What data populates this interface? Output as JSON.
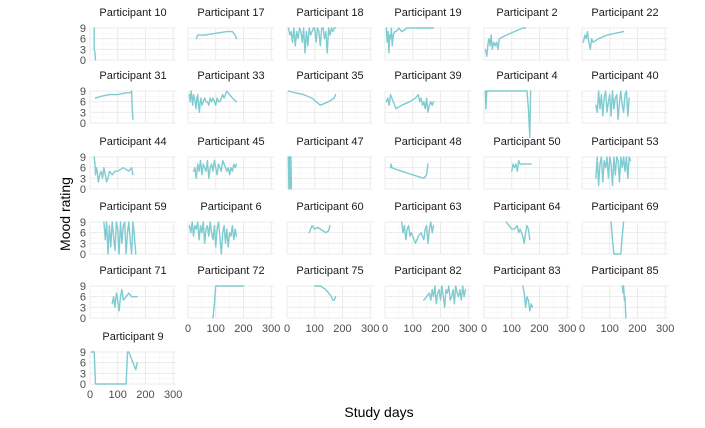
{
  "chart_data": {
    "type": "line",
    "layout": "faceted small multiples",
    "xlabel": "Study days",
    "ylabel": "Mood rating",
    "xlim": [
      0,
      310
    ],
    "ylim": [
      0,
      9
    ],
    "x_ticks": [
      0,
      100,
      200,
      300
    ],
    "y_ticks": [
      0,
      3,
      6,
      9
    ],
    "grid": true,
    "line_color": "#7ecbd0",
    "grid_color": "#ebebeb",
    "series": [
      {
        "name": "Participant 10",
        "x": [
          15,
          15,
          18,
          20
        ],
        "y": [
          9,
          3,
          2,
          0
        ]
      },
      {
        "name": "Participant 17",
        "x": [
          30,
          35,
          60,
          100,
          140,
          150,
          160,
          170,
          175
        ],
        "y": [
          6,
          7,
          7,
          7.5,
          8,
          8,
          8,
          7,
          6
        ]
      },
      {
        "name": "Participant 18",
        "x": [
          5,
          10,
          15,
          20,
          25,
          30,
          35,
          40,
          45,
          50,
          55,
          60,
          65,
          70,
          75,
          80,
          85,
          90,
          95,
          100,
          105,
          110,
          115,
          120,
          125,
          130,
          135,
          140,
          145,
          150,
          155,
          160,
          165,
          170,
          175
        ],
        "y": [
          9,
          7,
          8,
          5,
          9,
          4,
          8,
          6,
          9,
          8,
          5,
          9,
          2,
          8,
          4,
          9,
          7,
          8,
          9,
          9,
          5,
          9,
          8,
          4,
          9,
          9,
          6,
          8,
          2,
          9,
          7,
          9,
          8,
          9,
          9
        ]
      },
      {
        "name": "Participant 19",
        "x": [
          5,
          8,
          11,
          14,
          17,
          20,
          23,
          26,
          30,
          35,
          40,
          50,
          60,
          80,
          100,
          130,
          160,
          175
        ],
        "y": [
          9,
          5,
          8,
          2,
          7,
          6,
          9,
          4,
          7,
          8,
          8,
          9,
          8,
          9,
          9,
          9,
          9,
          9
        ]
      },
      {
        "name": "Participant 2",
        "x": [
          5,
          10,
          15,
          18,
          22,
          26,
          30,
          35,
          40,
          45,
          50,
          55,
          80,
          110,
          140,
          150
        ],
        "y": [
          3,
          1,
          5,
          6,
          4,
          7,
          3,
          5,
          4,
          5,
          3,
          6,
          7,
          8,
          9,
          9
        ]
      },
      {
        "name": "Participant 22",
        "x": [
          5,
          10,
          15,
          20,
          25,
          30,
          35,
          40,
          60,
          90,
          120,
          150
        ],
        "y": [
          5,
          7,
          6,
          8,
          5,
          3,
          6,
          5,
          6,
          7,
          7.5,
          8
        ]
      },
      {
        "name": "Participant 31",
        "x": [
          20,
          40,
          70,
          100,
          130,
          145,
          150,
          152,
          155
        ],
        "y": [
          7,
          7.5,
          8,
          8,
          8.5,
          8.5,
          9,
          4,
          1
        ]
      },
      {
        "name": "Participant 33",
        "x": [
          5,
          8,
          11,
          14,
          17,
          20,
          23,
          26,
          29,
          32,
          35,
          38,
          41,
          44,
          47,
          50,
          55,
          60,
          65,
          70,
          75,
          80,
          85,
          90,
          95,
          100,
          105,
          110,
          115,
          120,
          125,
          130,
          140,
          150,
          160,
          175
        ],
        "y": [
          8,
          6,
          9,
          7,
          5,
          8,
          7,
          6,
          4,
          7,
          8,
          5,
          3,
          6,
          7,
          5,
          6,
          7,
          6,
          6,
          5,
          7,
          6,
          7,
          6,
          5,
          7,
          6,
          6,
          7,
          8,
          7,
          9,
          8,
          7,
          6
        ]
      },
      {
        "name": "Participant 35",
        "x": [
          5,
          30,
          60,
          90,
          120,
          150,
          170,
          175
        ],
        "y": [
          9,
          8.5,
          8,
          7,
          5,
          6,
          7,
          8
        ]
      },
      {
        "name": "Participant 39",
        "x": [
          5,
          10,
          15,
          20,
          25,
          30,
          40,
          60,
          90,
          110,
          120,
          125,
          130,
          135,
          140,
          145,
          150,
          155,
          160,
          165,
          170,
          175
        ],
        "y": [
          6,
          7,
          5,
          8,
          7,
          6,
          4,
          5,
          6,
          7,
          8,
          6,
          7,
          5,
          6,
          4,
          7,
          3,
          5,
          6,
          5,
          6
        ]
      },
      {
        "name": "Participant 4",
        "x": [
          5,
          7,
          10,
          12,
          15,
          20,
          30,
          60,
          100,
          130,
          150,
          155,
          160,
          165,
          168
        ],
        "y": [
          9,
          4,
          9,
          9,
          9,
          9,
          9,
          9,
          9,
          9,
          9,
          9,
          4,
          -4,
          9
        ]
      },
      {
        "name": "Participant 40",
        "x": [
          50,
          55,
          60,
          65,
          70,
          75,
          80,
          85,
          90,
          95,
          100,
          105,
          110,
          115,
          120,
          125,
          130,
          135,
          140,
          145,
          150,
          155,
          160,
          165,
          170
        ],
        "y": [
          5,
          3,
          9,
          4,
          8,
          2,
          7,
          9,
          3,
          6,
          8,
          2,
          9,
          4,
          7,
          8,
          1,
          6,
          9,
          5,
          3,
          8,
          9,
          2,
          7
        ]
      },
      {
        "name": "Participant 44",
        "x": [
          15,
          18,
          20,
          23,
          26,
          30,
          35,
          40,
          45,
          50,
          55,
          60,
          65,
          70,
          80,
          90,
          100,
          120,
          140,
          150,
          155
        ],
        "y": [
          9,
          7,
          4,
          6,
          5,
          2,
          4,
          5,
          3,
          6,
          4,
          2,
          3,
          5,
          4,
          5,
          5,
          6,
          5,
          6,
          4
        ]
      },
      {
        "name": "Participant 45",
        "x": [
          20,
          25,
          30,
          35,
          40,
          45,
          50,
          55,
          60,
          65,
          70,
          75,
          80,
          85,
          90,
          95,
          100,
          105,
          110,
          115,
          120,
          125,
          130,
          135,
          140,
          145,
          150,
          155,
          160,
          165,
          170,
          175
        ],
        "y": [
          5,
          6,
          3,
          7,
          5,
          8,
          4,
          7,
          6,
          5,
          8,
          3,
          6,
          7,
          5,
          8,
          6,
          4,
          7,
          6,
          5,
          8,
          7,
          6,
          5,
          6,
          4,
          6,
          5,
          7,
          6,
          7
        ]
      },
      {
        "name": "Participant 47",
        "x": [
          5,
          7,
          9,
          10,
          12,
          14,
          16
        ],
        "y": [
          9,
          0,
          9,
          0,
          9,
          9,
          0
        ]
      },
      {
        "name": "Participant 48",
        "x": [
          20,
          22,
          25,
          40,
          60,
          80,
          100,
          120,
          140,
          150,
          155
        ],
        "y": [
          6,
          7,
          6,
          5.5,
          5,
          4.5,
          4,
          3.5,
          3,
          4,
          7
        ]
      },
      {
        "name": "Participant 50",
        "x": [
          100,
          105,
          110,
          115,
          120,
          125,
          130,
          140,
          150,
          160,
          170
        ],
        "y": [
          5,
          7,
          6,
          7,
          5,
          8,
          7,
          7,
          7,
          7,
          7
        ]
      },
      {
        "name": "Participant 53",
        "x": [
          50,
          55,
          60,
          65,
          70,
          75,
          80,
          85,
          90,
          95,
          100,
          105,
          110,
          115,
          120,
          125,
          130,
          135,
          140,
          145,
          150,
          155,
          160,
          165,
          170,
          175
        ],
        "y": [
          3,
          9,
          1,
          7,
          9,
          2,
          8,
          6,
          9,
          3,
          9,
          7,
          1,
          9,
          4,
          9,
          8,
          2,
          9,
          6,
          9,
          5,
          9,
          3,
          9,
          8
        ]
      },
      {
        "name": "Participant 59",
        "x": [
          50,
          55,
          60,
          65,
          70,
          75,
          80,
          85,
          90,
          95,
          100,
          105,
          110,
          115,
          120,
          125,
          130,
          135,
          140,
          145,
          150,
          155,
          160,
          165
        ],
        "y": [
          9,
          4,
          9,
          0,
          8,
          2,
          9,
          5,
          1,
          9,
          7,
          0,
          9,
          3,
          8,
          9,
          0,
          6,
          9,
          4,
          0,
          9,
          5,
          0
        ]
      },
      {
        "name": "Participant 6",
        "x": [
          5,
          10,
          15,
          20,
          25,
          30,
          35,
          40,
          45,
          50,
          55,
          60,
          65,
          70,
          75,
          80,
          85,
          90,
          95,
          100,
          105,
          110,
          115,
          120,
          125,
          130,
          135,
          140,
          145,
          150,
          155,
          160,
          165,
          170,
          175
        ],
        "y": [
          8,
          6,
          9,
          5,
          8,
          7,
          9,
          4,
          8,
          6,
          9,
          3,
          7,
          8,
          5,
          9,
          6,
          4,
          8,
          2,
          7,
          9,
          5,
          0,
          6,
          8,
          3,
          7,
          2,
          6,
          5,
          8,
          4,
          7,
          5
        ]
      },
      {
        "name": "Participant 60",
        "x": [
          80,
          90,
          100,
          110,
          120,
          130,
          140,
          150,
          155
        ],
        "y": [
          6,
          8,
          7,
          7.5,
          7,
          6.5,
          6,
          6.5,
          8
        ]
      },
      {
        "name": "Participant 63",
        "x": [
          60,
          65,
          70,
          75,
          80,
          85,
          90,
          95,
          100,
          105,
          110,
          120,
          130,
          140,
          145,
          150,
          155,
          160,
          165,
          170,
          175
        ],
        "y": [
          9,
          6,
          8,
          4,
          7,
          8,
          5,
          6,
          5,
          4,
          3,
          5,
          6,
          4,
          7,
          8,
          3,
          7,
          9,
          6,
          8
        ]
      },
      {
        "name": "Participant 64",
        "x": [
          80,
          90,
          100,
          110,
          120,
          125,
          130,
          140,
          145,
          150,
          155,
          160,
          165
        ],
        "y": [
          9,
          8,
          7,
          7,
          8,
          6,
          7,
          5,
          3,
          6,
          8,
          7,
          4
        ]
      },
      {
        "name": "Participant 69",
        "x": [
          105,
          110,
          115,
          120,
          135,
          140,
          145,
          150
        ],
        "y": [
          9,
          4,
          0,
          0,
          0,
          0,
          5,
          9
        ]
      },
      {
        "name": "Participant 71",
        "x": [
          80,
          85,
          90,
          95,
          100,
          105,
          110,
          115,
          120,
          130,
          140,
          150,
          160,
          170
        ],
        "y": [
          4,
          6,
          3,
          7,
          5,
          2,
          6,
          8,
          5,
          6,
          7,
          6,
          6,
          6
        ]
      },
      {
        "name": "Participant 72",
        "x": [
          90,
          95,
          100,
          120,
          150,
          180,
          200
        ],
        "y": [
          0,
          4,
          9,
          9,
          9,
          9,
          9
        ]
      },
      {
        "name": "Participant 75",
        "x": [
          100,
          110,
          120,
          130,
          140,
          150,
          160,
          165,
          170,
          175
        ],
        "y": [
          9,
          9,
          9,
          8.5,
          8,
          7,
          6,
          5,
          5,
          6
        ]
      },
      {
        "name": "Participant 82",
        "x": [
          140,
          150,
          160,
          165,
          170,
          175,
          180,
          185,
          190,
          195,
          200,
          205,
          210,
          215,
          220,
          225,
          230,
          235,
          240,
          245,
          250,
          255,
          260,
          265,
          270,
          275,
          280,
          285,
          290
        ],
        "y": [
          5,
          6,
          7,
          5,
          8,
          6,
          9,
          4,
          7,
          8,
          5,
          9,
          6,
          3,
          8,
          7,
          9,
          5,
          6,
          8,
          4,
          9,
          7,
          6,
          8,
          5,
          9,
          6,
          8
        ]
      },
      {
        "name": "Participant 83",
        "x": [
          140,
          145,
          150,
          155,
          160,
          165,
          170,
          175
        ],
        "y": [
          9,
          7,
          3,
          6,
          5,
          2,
          4,
          3
        ]
      },
      {
        "name": "Participant 85",
        "x": [
          145,
          148,
          150,
          153,
          155,
          158
        ],
        "y": [
          9,
          7,
          9,
          5,
          6,
          0
        ]
      },
      {
        "name": "Participant 9",
        "x": [
          5,
          10,
          15,
          20,
          40,
          80,
          120,
          125,
          130,
          135,
          140,
          145,
          150,
          155,
          160,
          165,
          170
        ],
        "y": [
          9,
          9,
          9,
          0,
          0,
          0,
          0,
          0,
          0,
          9,
          9,
          8,
          7,
          6,
          5,
          4,
          6
        ]
      }
    ]
  }
}
